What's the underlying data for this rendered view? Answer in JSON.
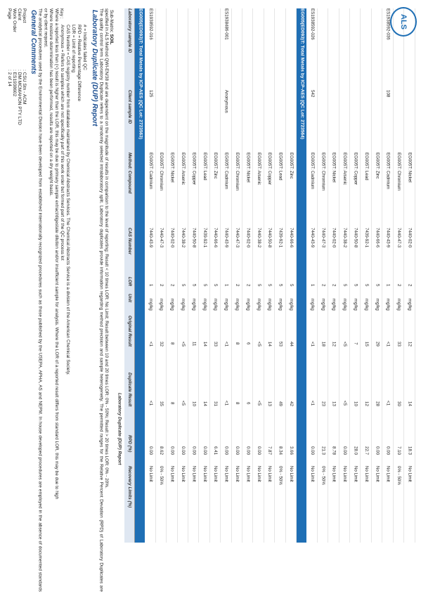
{
  "header": {
    "fields": [
      {
        "label": "Page",
        "value": ": 2 of 14"
      },
      {
        "label": "Work Order",
        "value": ": ES1938602"
      },
      {
        "label": "Client",
        "value": ": DM MCMAHON PTY LTD"
      },
      {
        "label": "Project",
        "value": ": CSU Stn - ACM"
      }
    ],
    "logo_text": "ALS"
  },
  "general": {
    "title": "General Comments",
    "paragraphs": [
      "The analytical procedures used by the Environmental Division have been developed from established internationally recognized procedures such as those published by the USEPA, APHA, AS and NEPM. In house developed procedures are employed in the absence of documented standards or by client request.",
      "Where moisture determination has been performed, results are reported on a dry weight basis.",
      "Where a reported less than (<) result is higher than the LOR, this may be due to primary sample extract/digestate dilution and/or insufficient sample for analysis. Where the LOR of a reported result differs from standard LOR, this may be due to high"
    ],
    "key_label": "Key :",
    "key": [
      "Anonymous = Refers to samples which are not specifically part of this work order but formed part of the QC process lot",
      "CAS Number = CAS registry number from database maintained by Chemical Abstracts Services. The Chemical Abstracts Service is a division of the American Chemical Society.",
      "LOR = Limit of reporting",
      "RPD = Relative Percentage Difference",
      "# = Indicates failed QC"
    ]
  },
  "dup": {
    "title": "Laboratory Duplicate (DUP) Report",
    "intro": "The quality control term Laboratory Duplicate refers to a randomly selected intralaboratory split. Laboratory duplicates provide information regarding method precision and sample heterogeneity. The permitted ranges for the Relative Percent Deviation (RPD) of Laboratory Duplicates are specified in ALS Method QWI-EN/38 and are dependent on the magnitude of results in comparison to the level of reporting: Result < 10 times LOR: No Limit; Result between 10 and 20 times LOR: 0% - 50%; Result > 20 times LOR: 0% - 20%.",
    "submatrix_label": "Sub-Matrix:",
    "submatrix": "SOIL"
  },
  "table": {
    "group_header": "Laboratory Duplicate (DUP) Report",
    "columns": [
      "Laboratory sample ID",
      "Client sample ID",
      "Method: Compound",
      "CAS Number",
      "LOR",
      "Unit",
      "Original Result",
      "Duplicate Result",
      "RPD (%)",
      "Recovery Limits (%)"
    ],
    "sections": [
      {
        "title": "EG005(ED093)T: Total Metals by ICP-AES  (QC Lot: 2723563)",
        "samples": [
          {
            "lab_id": "ES1938592-016",
            "client_id": "125",
            "rows": [
              [
                "EG005T: Cadmium",
                "7440-43-9",
                "1",
                "mg/kg",
                "<1",
                "<1",
                "0.00",
                "No Limit"
              ],
              [
                "EG005T: Chromium",
                "7440-47-3",
                "2",
                "mg/kg",
                "32",
                "35",
                "8.62",
                "0% - 50%"
              ],
              [
                "EG005T: Nickel",
                "7440-02-0",
                "2",
                "mg/kg",
                "8",
                "8",
                "0.00",
                "No Limit"
              ],
              [
                "EG005T: Arsenic",
                "7440-38-2",
                "5",
                "mg/kg",
                "<5",
                "<5",
                "0.00",
                "No Limit"
              ],
              [
                "EG005T: Copper",
                "7440-50-8",
                "5",
                "mg/kg",
                "11",
                "10",
                "0.00",
                "No Limit"
              ],
              [
                "EG005T: Lead",
                "7439-92-1",
                "5",
                "mg/kg",
                "14",
                "14",
                "0.00",
                "No Limit"
              ],
              [
                "EG005T: Zinc",
                "7440-66-6",
                "5",
                "mg/kg",
                "33",
                "31",
                "6.41",
                "No Limit"
              ]
            ]
          },
          {
            "lab_id": "ES1938486-001",
            "client_id": "Anonymous",
            "rows": [
              [
                "EG005T: Cadmium",
                "7440-43-9",
                "1",
                "mg/kg",
                "<1",
                "<1",
                "0.00",
                "No Limit"
              ],
              [
                "EG005T: Chromium",
                "7440-47-3",
                "2",
                "mg/kg",
                "8",
                "8",
                "0.00",
                "No Limit"
              ],
              [
                "EG005T: Nickel",
                "7440-02-0",
                "2",
                "mg/kg",
                "6",
                "6",
                "0.00",
                "No Limit"
              ],
              [
                "EG005T: Arsenic",
                "7440-38-2",
                "5",
                "mg/kg",
                "<5",
                "<5",
                "0.00",
                "No Limit"
              ],
              [
                "EG005T: Copper",
                "7440-50-8",
                "5",
                "mg/kg",
                "14",
                "13",
                "7.87",
                "No Limit"
              ],
              [
                "EG005T: Lead",
                "7439-92-1",
                "5",
                "mg/kg",
                "53",
                "49",
                "8.34",
                "0% - 50%"
              ],
              [
                "EG005T: Zinc",
                "7440-66-6",
                "5",
                "mg/kg",
                "44",
                "42",
                "3.66",
                "No Limit"
              ]
            ]
          }
        ]
      },
      {
        "title": "EG005(ED093)T: Total Metals by ICP-AES  (QC Lot: 2723564)",
        "samples": [
          {
            "lab_id": "ES1938592-026",
            "client_id": "542",
            "rows": [
              [
                "EG005T: Cadmium",
                "7440-43-9",
                "1",
                "mg/kg",
                "<1",
                "<1",
                "0.00",
                "No Limit"
              ],
              [
                "EG005T: Chromium",
                "7440-47-3",
                "2",
                "mg/kg",
                "18",
                "23",
                "21.3",
                "0% - 50%"
              ],
              [
                "EG005T: Nickel",
                "7440-02-0",
                "2",
                "mg/kg",
                "12",
                "13",
                "8.78",
                "No Limit"
              ],
              [
                "EG005T: Arsenic",
                "7440-38-2",
                "5",
                "mg/kg",
                "<5",
                "<5",
                "0.00",
                "No Limit"
              ],
              [
                "EG005T: Copper",
                "7440-50-8",
                "5",
                "mg/kg",
                "7",
                "10",
                "28.0",
                "No Limit"
              ],
              [
                "EG005T: Lead",
                "7439-92-1",
                "5",
                "mg/kg",
                "15",
                "12",
                "22.7",
                "No Limit"
              ],
              [
                "EG005T: Zinc",
                "7440-66-6",
                "5",
                "mg/kg",
                "29",
                "28",
                "0.00",
                "No Limit"
              ]
            ]
          },
          {
            "lab_id": "ES1938592-036",
            "client_id": "108",
            "rows": [
              [
                "EG005T: Cadmium",
                "7440-43-9",
                "1",
                "mg/kg",
                "<1",
                "<1",
                "0.00",
                "No Limit"
              ],
              [
                "EG005T: Chromium",
                "7440-47-3",
                "2",
                "mg/kg",
                "33",
                "30",
                "7.10",
                "0% - 50%"
              ],
              [
                "EG005T: Nickel",
                "7440-02-0",
                "2",
                "mg/kg",
                "12",
                "14",
                "18.3",
                "No Limit"
              ]
            ]
          }
        ]
      }
    ]
  }
}
